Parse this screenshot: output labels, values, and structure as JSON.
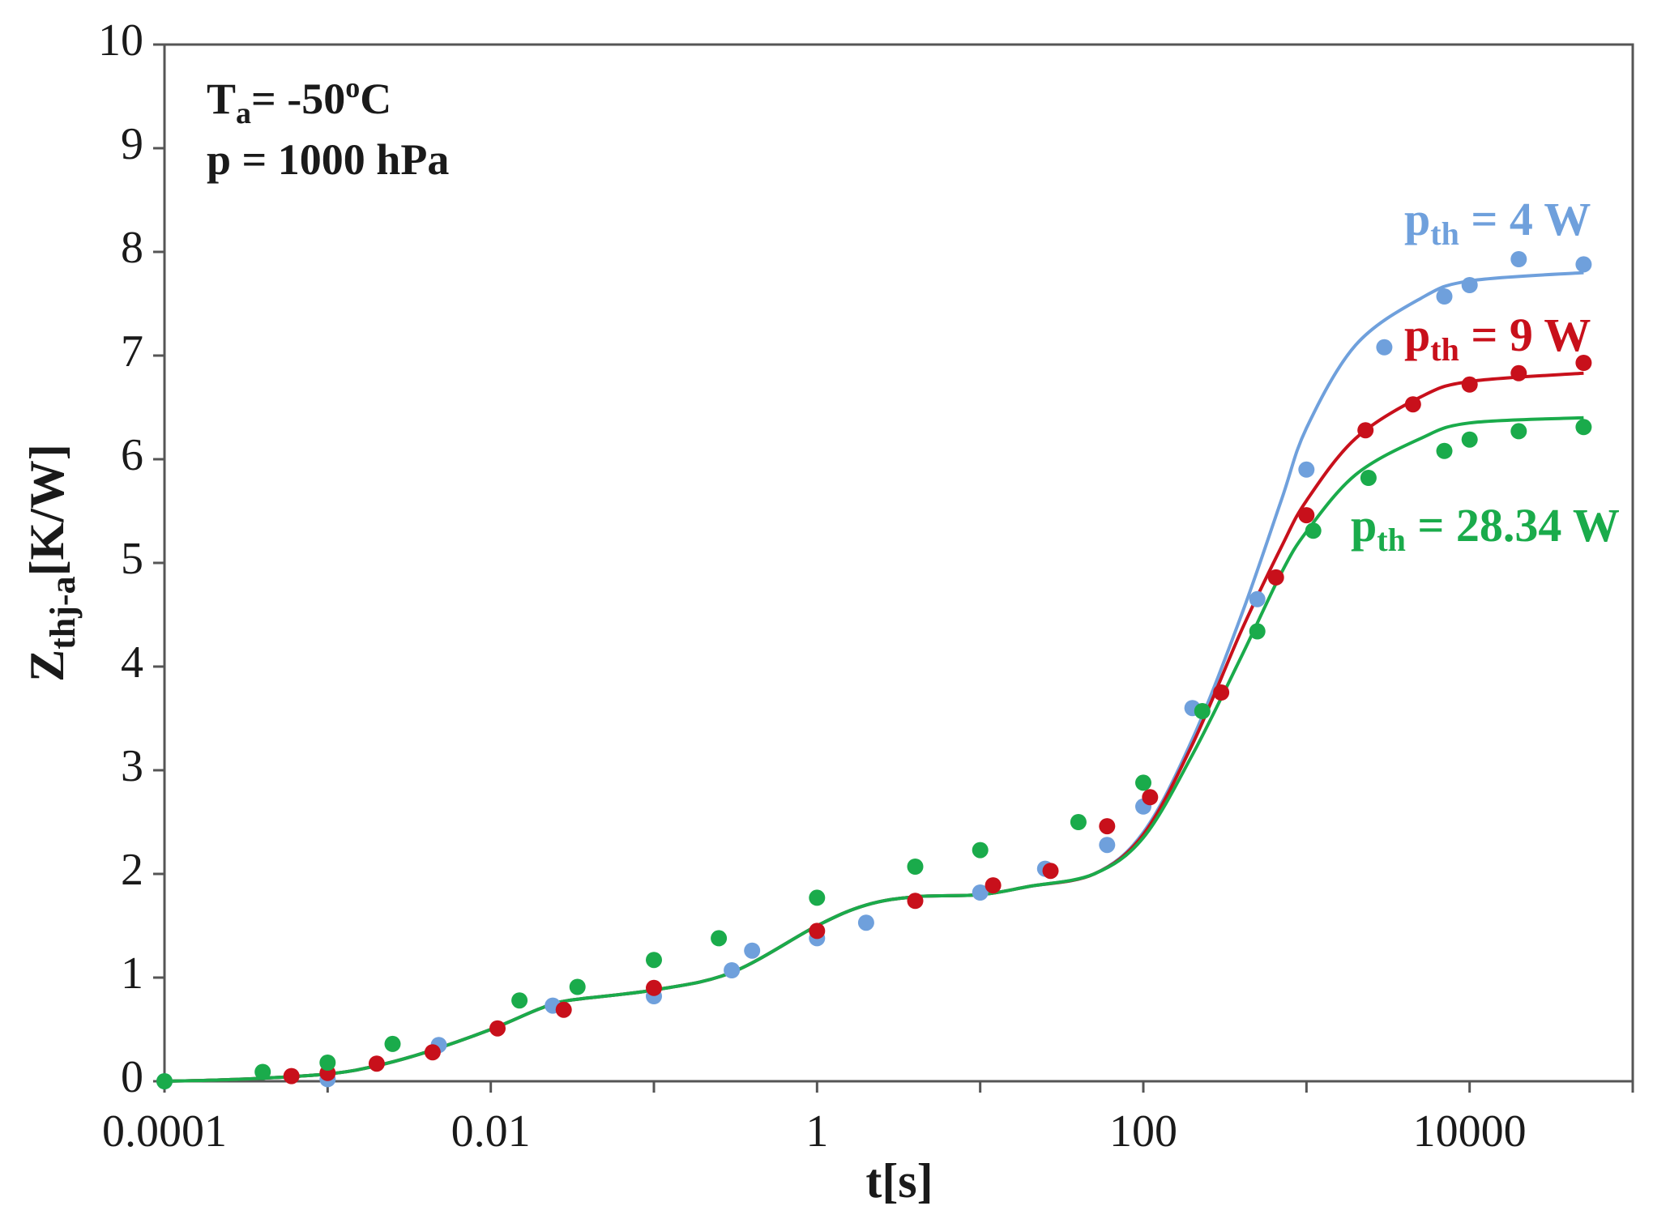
{
  "chart_data": {
    "type": "scatter",
    "title": "",
    "xlabel": "t[s]",
    "ylabel_main": "Z",
    "ylabel_sub": "thj-a",
    "ylabel_unit": "[K/W]",
    "xscale": "log",
    "xlim": [
      0.0001,
      100000
    ],
    "ylim": [
      0,
      10
    ],
    "x_ticks": [
      {
        "value": 0.0001,
        "label": "0.0001"
      },
      {
        "value": 0.01,
        "label": "0.01"
      },
      {
        "value": 1,
        "label": "1"
      },
      {
        "value": 100,
        "label": "100"
      },
      {
        "value": 10000,
        "label": "10000"
      }
    ],
    "y_ticks": [
      {
        "value": 0,
        "label": "0"
      },
      {
        "value": 1,
        "label": "1"
      },
      {
        "value": 2,
        "label": "2"
      },
      {
        "value": 3,
        "label": "3"
      },
      {
        "value": 4,
        "label": "4"
      },
      {
        "value": 5,
        "label": "5"
      },
      {
        "value": 6,
        "label": "6"
      },
      {
        "value": 7,
        "label": "7"
      },
      {
        "value": 8,
        "label": "8"
      },
      {
        "value": 9,
        "label": "9"
      },
      {
        "value": 10,
        "label": "10"
      }
    ],
    "annotations": {
      "ta_main": "T",
      "ta_sub": "a",
      "ta_rest": "= -50",
      "ta_sup": "o",
      "ta_unit": "C",
      "pressure": "p = 1000 hPa"
    },
    "series": [
      {
        "name": "p_th = 4 W",
        "label_main": "p",
        "label_sub": "th",
        "label_rest": " = 4 W",
        "color": "#6fa0dc",
        "points": [
          [
            0.0001,
            0
          ],
          [
            0.001,
            0.02
          ],
          [
            0.0048,
            0.35
          ],
          [
            0.024,
            0.73
          ],
          [
            0.1,
            0.82
          ],
          [
            0.3,
            1.07
          ],
          [
            0.4,
            1.26
          ],
          [
            1,
            1.38
          ],
          [
            2,
            1.53
          ],
          [
            10,
            1.82
          ],
          [
            25,
            2.05
          ],
          [
            60,
            2.28
          ],
          [
            100,
            2.65
          ],
          [
            200,
            3.6
          ],
          [
            500,
            4.65
          ],
          [
            1000,
            5.9
          ],
          [
            3000,
            7.08
          ],
          [
            7000,
            7.57
          ],
          [
            10000,
            7.68
          ],
          [
            20000,
            7.93
          ],
          [
            50000,
            7.88
          ]
        ],
        "fit": [
          [
            0.0001,
            0.0
          ],
          [
            0.0003,
            0.02
          ],
          [
            0.001,
            0.07
          ],
          [
            0.002,
            0.15
          ],
          [
            0.004,
            0.28
          ],
          [
            0.01,
            0.5
          ],
          [
            0.02,
            0.7
          ],
          [
            0.03,
            0.78
          ],
          [
            0.1,
            0.88
          ],
          [
            0.3,
            1.05
          ],
          [
            1,
            1.5
          ],
          [
            2,
            1.7
          ],
          [
            4,
            1.78
          ],
          [
            10,
            1.8
          ],
          [
            20,
            1.88
          ],
          [
            50,
            2.0
          ],
          [
            100,
            2.4
          ],
          [
            200,
            3.3
          ],
          [
            400,
            4.5
          ],
          [
            700,
            5.6
          ],
          [
            1000,
            6.3
          ],
          [
            2000,
            7.1
          ],
          [
            5000,
            7.55
          ],
          [
            10000,
            7.72
          ],
          [
            50000,
            7.8
          ]
        ]
      },
      {
        "name": "p_th = 9 W",
        "label_main": "p",
        "label_sub": "th",
        "label_rest": " = 9 W",
        "color": "#c8101b",
        "points": [
          [
            0.0006,
            0.05
          ],
          [
            0.001,
            0.08
          ],
          [
            0.002,
            0.17
          ],
          [
            0.0044,
            0.28
          ],
          [
            0.011,
            0.51
          ],
          [
            0.028,
            0.69
          ],
          [
            0.1,
            0.9
          ],
          [
            1,
            1.45
          ],
          [
            4,
            1.74
          ],
          [
            12,
            1.89
          ],
          [
            27,
            2.03
          ],
          [
            60,
            2.46
          ],
          [
            110,
            2.74
          ],
          [
            300,
            3.75
          ],
          [
            650,
            4.86
          ],
          [
            1000,
            5.46
          ],
          [
            2300,
            6.28
          ],
          [
            4500,
            6.53
          ],
          [
            10000,
            6.72
          ],
          [
            20000,
            6.83
          ],
          [
            50000,
            6.93
          ]
        ],
        "fit": [
          [
            0.0001,
            0.0
          ],
          [
            0.0003,
            0.02
          ],
          [
            0.001,
            0.07
          ],
          [
            0.002,
            0.15
          ],
          [
            0.004,
            0.28
          ],
          [
            0.01,
            0.5
          ],
          [
            0.02,
            0.7
          ],
          [
            0.03,
            0.78
          ],
          [
            0.1,
            0.88
          ],
          [
            0.3,
            1.05
          ],
          [
            1,
            1.5
          ],
          [
            2,
            1.7
          ],
          [
            4,
            1.78
          ],
          [
            10,
            1.8
          ],
          [
            20,
            1.88
          ],
          [
            50,
            2.0
          ],
          [
            100,
            2.38
          ],
          [
            200,
            3.25
          ],
          [
            400,
            4.35
          ],
          [
            700,
            5.15
          ],
          [
            1000,
            5.6
          ],
          [
            2000,
            6.2
          ],
          [
            5000,
            6.6
          ],
          [
            10000,
            6.75
          ],
          [
            50000,
            6.83
          ]
        ]
      },
      {
        "name": "p_th = 28.34 W",
        "label_main": "p",
        "label_sub": "th",
        "label_rest": " = 28.34 W",
        "color": "#1aab4b",
        "points": [
          [
            0.0001,
            0
          ],
          [
            0.0004,
            0.09
          ],
          [
            0.001,
            0.18
          ],
          [
            0.0025,
            0.36
          ],
          [
            0.015,
            0.78
          ],
          [
            0.034,
            0.91
          ],
          [
            0.1,
            1.17
          ],
          [
            0.25,
            1.38
          ],
          [
            1,
            1.77
          ],
          [
            4,
            2.07
          ],
          [
            10,
            2.23
          ],
          [
            40,
            2.5
          ],
          [
            100,
            2.88
          ],
          [
            230,
            3.57
          ],
          [
            500,
            4.34
          ],
          [
            1100,
            5.31
          ],
          [
            2400,
            5.82
          ],
          [
            7000,
            6.08
          ],
          [
            10000,
            6.19
          ],
          [
            20000,
            6.27
          ],
          [
            50000,
            6.31
          ]
        ],
        "fit": [
          [
            0.0001,
            0.0
          ],
          [
            0.0003,
            0.02
          ],
          [
            0.001,
            0.07
          ],
          [
            0.002,
            0.15
          ],
          [
            0.004,
            0.28
          ],
          [
            0.01,
            0.5
          ],
          [
            0.02,
            0.7
          ],
          [
            0.03,
            0.78
          ],
          [
            0.1,
            0.88
          ],
          [
            0.3,
            1.05
          ],
          [
            1,
            1.5
          ],
          [
            2,
            1.7
          ],
          [
            4,
            1.78
          ],
          [
            10,
            1.8
          ],
          [
            20,
            1.88
          ],
          [
            50,
            2.0
          ],
          [
            100,
            2.35
          ],
          [
            200,
            3.15
          ],
          [
            400,
            4.1
          ],
          [
            700,
            4.9
          ],
          [
            1000,
            5.3
          ],
          [
            2000,
            5.85
          ],
          [
            5000,
            6.2
          ],
          [
            10000,
            6.35
          ],
          [
            50000,
            6.4
          ]
        ]
      }
    ]
  }
}
